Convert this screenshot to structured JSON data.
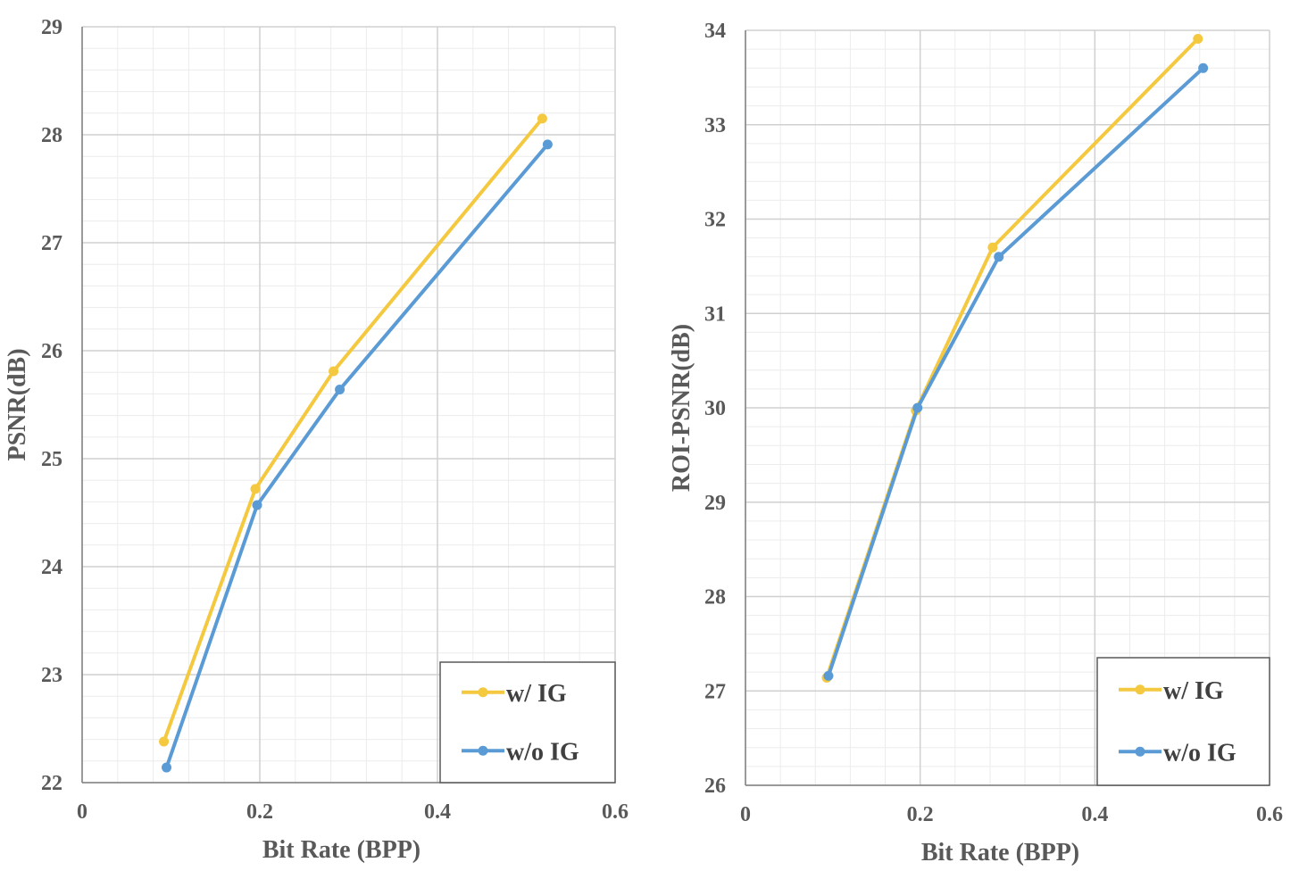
{
  "chart_data": [
    {
      "type": "line",
      "xlabel": "Bit Rate (BPP)",
      "ylabel": "PSNR(dB)",
      "xlim": [
        0,
        0.6
      ],
      "ylim": [
        22,
        29
      ],
      "xticks": [
        0,
        0.2,
        0.4,
        0.6
      ],
      "xtick_labels": [
        "0",
        "0.2",
        "0.4",
        "0.6"
      ],
      "yticks": [
        22,
        23,
        24,
        25,
        26,
        27,
        28,
        29
      ],
      "grid": true,
      "legend_position": "bottom-right",
      "series": [
        {
          "name": "w/ IG",
          "color": "#F4C93F",
          "x": [
            0.092,
            0.195,
            0.283,
            0.518
          ],
          "y": [
            22.38,
            24.72,
            25.81,
            28.15
          ]
        },
        {
          "name": "w/o IG",
          "color": "#5B9BD5",
          "x": [
            0.095,
            0.197,
            0.29,
            0.524
          ],
          "y": [
            22.14,
            24.57,
            25.64,
            27.91
          ]
        }
      ]
    },
    {
      "type": "line",
      "xlabel": "Bit Rate (BPP)",
      "ylabel": "ROI-PSNR(dB)",
      "xlim": [
        0,
        0.6
      ],
      "ylim": [
        26,
        34
      ],
      "xticks": [
        0,
        0.2,
        0.4,
        0.6
      ],
      "xtick_labels": [
        "0",
        "0.2",
        "0.4",
        "0.6"
      ],
      "yticks": [
        26,
        27,
        28,
        29,
        30,
        31,
        32,
        33,
        34
      ],
      "grid": true,
      "legend_position": "bottom-right",
      "series": [
        {
          "name": "w/ IG",
          "color": "#F4C93F",
          "x": [
            0.093,
            0.195,
            0.283,
            0.518
          ],
          "y": [
            27.14,
            29.97,
            31.7,
            33.91
          ]
        },
        {
          "name": "w/o IG",
          "color": "#5B9BD5",
          "x": [
            0.095,
            0.197,
            0.29,
            0.524
          ],
          "y": [
            27.16,
            30.0,
            31.6,
            33.6
          ]
        }
      ]
    }
  ]
}
